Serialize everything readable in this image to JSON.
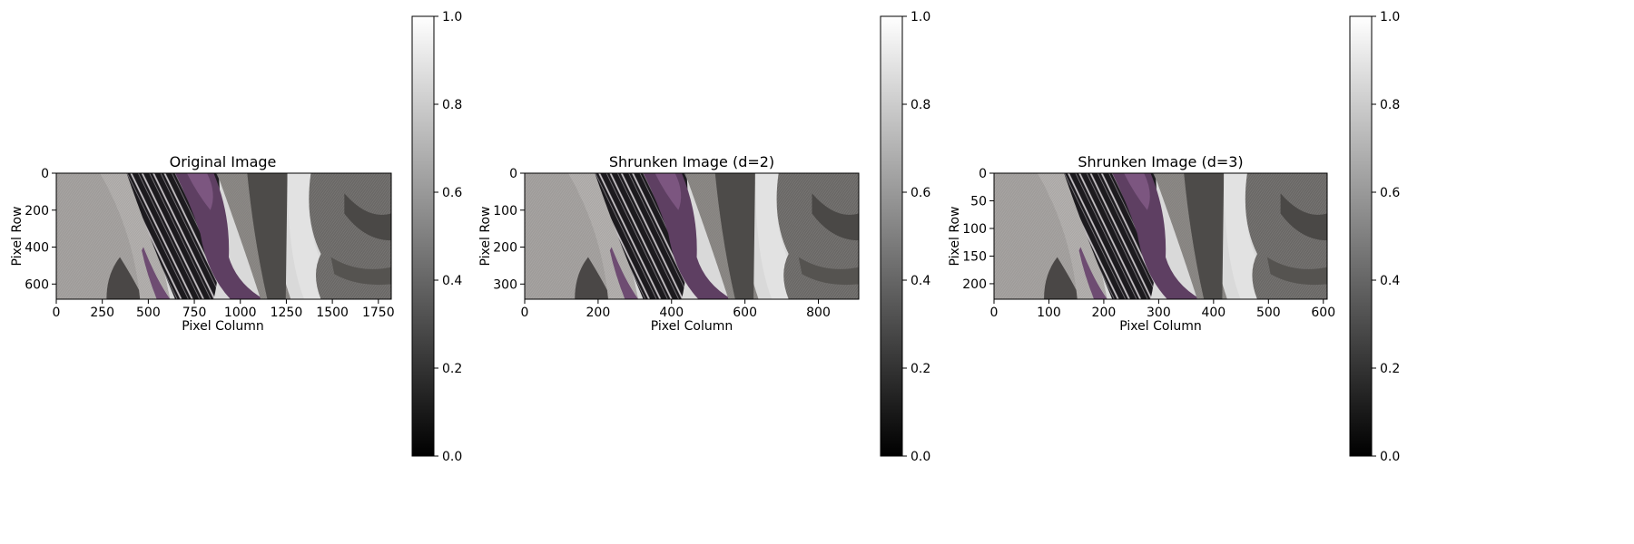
{
  "chart_data": [
    {
      "type": "heatmap",
      "title": "Original Image",
      "xlabel": "Pixel Column",
      "ylabel": "Pixel Row",
      "image_width": 1820,
      "image_height": 682,
      "xticks": [
        0,
        250,
        500,
        750,
        1000,
        1250,
        1500,
        1750
      ],
      "yticks": [
        0,
        200,
        400,
        600
      ],
      "colorbar": {
        "colormap": "gray",
        "range": [
          0.0,
          1.0
        ],
        "ticks": [
          0.0,
          0.2,
          0.4,
          0.6,
          0.8,
          1.0
        ]
      }
    },
    {
      "type": "heatmap",
      "title": "Shrunken Image (d=2)",
      "xlabel": "Pixel Column",
      "ylabel": "Pixel Row",
      "image_width": 910,
      "image_height": 341,
      "xticks": [
        0,
        200,
        400,
        600,
        800
      ],
      "yticks": [
        0,
        100,
        200,
        300
      ],
      "colorbar": {
        "colormap": "gray",
        "range": [
          0.0,
          1.0
        ],
        "ticks": [
          0.0,
          0.2,
          0.4,
          0.6,
          0.8,
          1.0
        ]
      }
    },
    {
      "type": "heatmap",
      "title": "Shrunken Image (d=3)",
      "xlabel": "Pixel Column",
      "ylabel": "Pixel Row",
      "image_width": 607,
      "image_height": 228,
      "xticks": [
        0,
        100,
        200,
        300,
        400,
        500,
        600
      ],
      "yticks": [
        0,
        50,
        100,
        150,
        200
      ],
      "colorbar": {
        "colormap": "gray",
        "range": [
          0.0,
          1.0
        ],
        "ticks": [
          0.0,
          0.2,
          0.4,
          0.6,
          0.8,
          1.0
        ]
      }
    }
  ],
  "colors": {
    "axis": "#000000",
    "background": "#ffffff",
    "suit_light": "#a3a09e",
    "suit_dark": "#3c3a38",
    "tie_black": "#1c1a1e",
    "tie_stripe": "#c4c0c4",
    "tie_purple": "#6e4c72",
    "backdrop": "#e4e4e4"
  }
}
